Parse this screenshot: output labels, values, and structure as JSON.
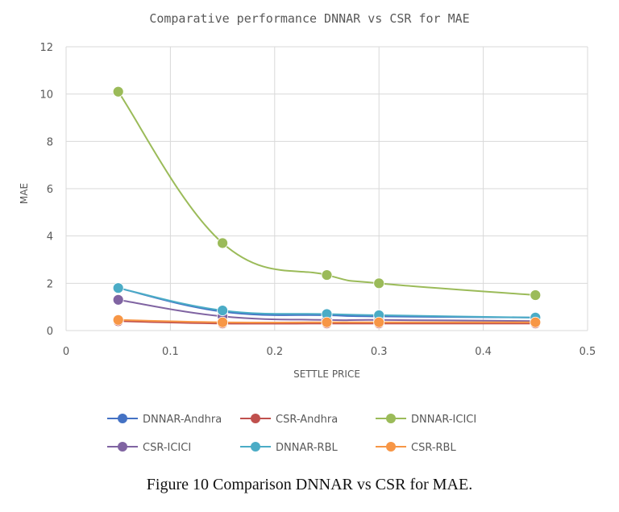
{
  "caption": "Figure 10 Comparison DNNAR vs CSR for MAE.",
  "chart_data": {
    "type": "scatter",
    "title": "Comparative performance DNNAR vs CSR for MAE",
    "xlabel": "SETTLE PRICE",
    "ylabel": "MAE",
    "xlim": [
      0,
      0.5
    ],
    "ylim": [
      0,
      12
    ],
    "x_ticks": [
      "0",
      "0.1",
      "0.2",
      "0.3",
      "0.4",
      "0.5"
    ],
    "y_ticks": [
      "0",
      "2",
      "4",
      "6",
      "8",
      "10",
      "12"
    ],
    "grid": true,
    "smooth_lines": true,
    "legend_position": "bottom",
    "x": [
      0.05,
      0.15,
      0.25,
      0.3,
      0.45
    ],
    "series": [
      {
        "name": "DNNAR-Andhra",
        "color": "#4472C4",
        "values": [
          1.8,
          0.8,
          0.65,
          0.6,
          0.55
        ]
      },
      {
        "name": "CSR-Andhra",
        "color": "#C0504D",
        "values": [
          0.4,
          0.3,
          0.3,
          0.3,
          0.3
        ]
      },
      {
        "name": "DNNAR-ICICI",
        "color": "#9BBB59",
        "values": [
          10.1,
          3.7,
          2.35,
          2.0,
          1.5
        ]
      },
      {
        "name": "CSR-ICICI",
        "color": "#8064A2",
        "values": [
          1.3,
          0.6,
          0.45,
          0.45,
          0.4
        ]
      },
      {
        "name": "DNNAR-RBL",
        "color": "#4BACC6",
        "values": [
          1.8,
          0.85,
          0.7,
          0.65,
          0.55
        ]
      },
      {
        "name": "CSR-RBL",
        "color": "#F79646",
        "values": [
          0.45,
          0.35,
          0.35,
          0.35,
          0.35
        ]
      }
    ]
  }
}
